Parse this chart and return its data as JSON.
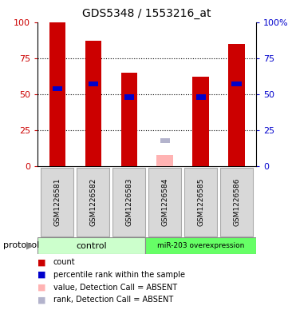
{
  "title": "GDS5348 / 1553216_at",
  "samples": [
    "GSM1226581",
    "GSM1226582",
    "GSM1226583",
    "GSM1226584",
    "GSM1226585",
    "GSM1226586"
  ],
  "bar_values": [
    100,
    87,
    65,
    null,
    62,
    85
  ],
  "bar_color": "#cc0000",
  "percentile_values": [
    54,
    57,
    48,
    null,
    48,
    57
  ],
  "percentile_color": "#0000cc",
  "absent_bar_value": 8,
  "absent_bar_color": "#ffb3b3",
  "absent_rank_value": 18,
  "absent_rank_color": "#b3b3cc",
  "absent_sample_index": 3,
  "ylim": [
    0,
    100
  ],
  "yticks": [
    0,
    25,
    50,
    75,
    100
  ],
  "control_label": "control",
  "overexpression_label": "miR-203 overexpression",
  "protocol_label": "protocol",
  "control_color": "#ccffcc",
  "overexpression_color": "#66ff66",
  "left_yaxis_color": "#cc0000",
  "right_yaxis_color": "#0000cc",
  "legend_items": [
    {
      "label": "count",
      "color": "#cc0000"
    },
    {
      "label": "percentile rank within the sample",
      "color": "#0000cc"
    },
    {
      "label": "value, Detection Call = ABSENT",
      "color": "#ffb3b3"
    },
    {
      "label": "rank, Detection Call = ABSENT",
      "color": "#b3b3cc"
    }
  ]
}
